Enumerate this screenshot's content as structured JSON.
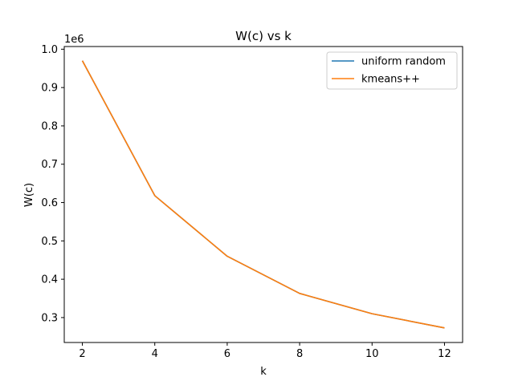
{
  "chart_data": {
    "type": "line",
    "title": "W(c) vs k",
    "xlabel": "k",
    "ylabel": "W(c)",
    "y_offset_label": "1e6",
    "x": [
      2,
      4,
      6,
      8,
      10,
      12
    ],
    "xlim": [
      1.5,
      12.5
    ],
    "ylim": [
      0.235,
      1.007
    ],
    "x_ticks": [
      2,
      4,
      6,
      8,
      10,
      12
    ],
    "y_ticks": [
      0.3,
      0.4,
      0.5,
      0.6,
      0.7,
      0.8,
      0.9,
      1.0
    ],
    "y_tick_labels": [
      "0.3",
      "0.4",
      "0.5",
      "0.6",
      "0.7",
      "0.8",
      "0.9",
      "1.0"
    ],
    "grid": false,
    "legend_position": "top-right",
    "series": [
      {
        "name": "uniform random",
        "color": "#1f77b4",
        "values": [
          0.97,
          0.618,
          0.46,
          0.363,
          0.31,
          0.273
        ]
      },
      {
        "name": "kmeans++",
        "color": "#ff7f0e",
        "values": [
          0.97,
          0.618,
          0.46,
          0.363,
          0.31,
          0.273
        ]
      }
    ]
  }
}
